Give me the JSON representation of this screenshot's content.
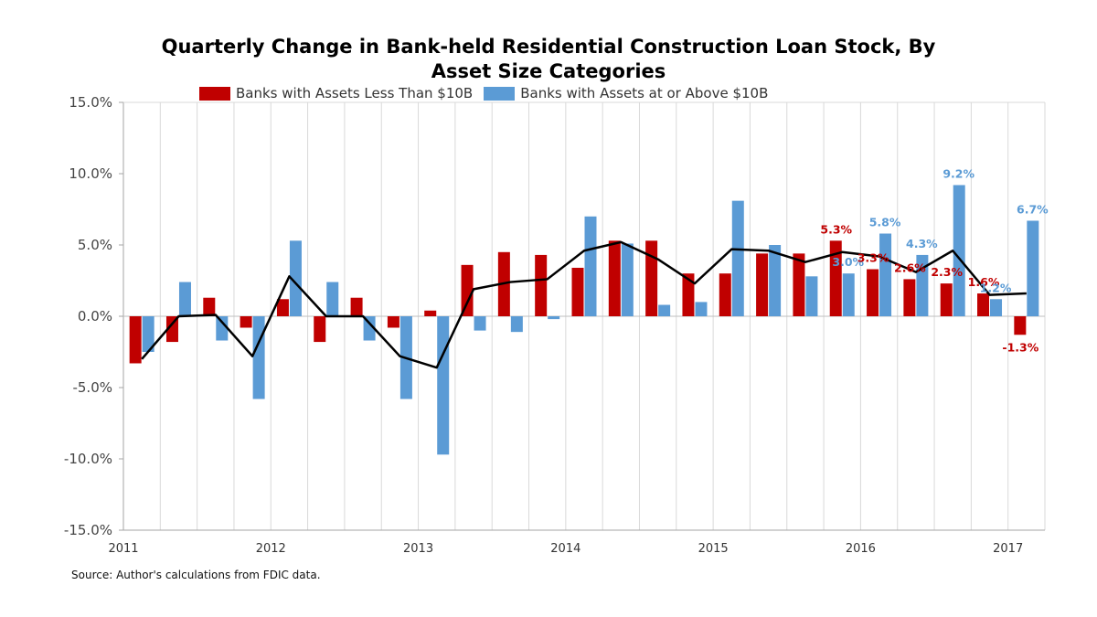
{
  "chart_data": {
    "type": "bar",
    "title_line1": "Quarterly Change in Bank-held Residential Construction Loan Stock, By",
    "title_line2": "Asset Size Categories",
    "source": "Source: Author's calculations from FDIC data.",
    "ylim": [
      -15,
      15
    ],
    "yticks": [
      "15.0%",
      "10.0%",
      "5.0%",
      "0.0%",
      "-5.0%",
      "-10.0%",
      "-15.0%"
    ],
    "ytick_values": [
      15,
      10,
      5,
      0,
      -5,
      -10,
      -15
    ],
    "years": [
      "2011",
      "2012",
      "2013",
      "2014",
      "2015",
      "2016",
      "2017"
    ],
    "quarters": 25,
    "colors": {
      "small": "#c00000",
      "large": "#5b9bd5",
      "line": "#000000",
      "grid": "#d9d9d9"
    },
    "series": [
      {
        "name": "Banks with Assets Less Than $10B",
        "values": [
          -3.3,
          -1.8,
          1.3,
          -0.8,
          1.2,
          -1.8,
          1.3,
          -0.8,
          0.4,
          3.6,
          4.5,
          4.3,
          3.4,
          5.3,
          5.3,
          3.0,
          3.0,
          4.4,
          4.4,
          5.3,
          3.3,
          2.6,
          2.3,
          1.6,
          -1.3
        ]
      },
      {
        "name": "Banks with Assets at or Above $10B",
        "values": [
          -2.5,
          2.4,
          -1.7,
          -5.8,
          5.3,
          2.4,
          -1.7,
          -5.8,
          -9.7,
          -1.0,
          -1.1,
          -0.2,
          7.0,
          5.1,
          0.8,
          1.0,
          8.1,
          5.0,
          2.8,
          3.0,
          5.8,
          4.3,
          9.2,
          1.2,
          6.7
        ]
      },
      {
        "name": "",
        "values": [
          -3.0,
          0.0,
          0.1,
          -2.8,
          2.8,
          0.0,
          0.0,
          -2.8,
          -3.6,
          1.9,
          2.4,
          2.6,
          4.6,
          5.2,
          4.0,
          2.3,
          4.7,
          4.6,
          3.8,
          4.5,
          4.2,
          3.1,
          4.6,
          1.5,
          1.6
        ]
      }
    ],
    "data_labels": [
      {
        "series": 0,
        "index": 19,
        "text": "5.3%"
      },
      {
        "series": 1,
        "index": 19,
        "text": "3.0%"
      },
      {
        "series": 0,
        "index": 20,
        "text": "3.3%"
      },
      {
        "series": 1,
        "index": 20,
        "text": "5.8%"
      },
      {
        "series": 0,
        "index": 21,
        "text": "2.6%"
      },
      {
        "series": 1,
        "index": 21,
        "text": "4.3%"
      },
      {
        "series": 0,
        "index": 22,
        "text": "2.3%"
      },
      {
        "series": 1,
        "index": 22,
        "text": "9.2%"
      },
      {
        "series": 0,
        "index": 23,
        "text": "1.6%"
      },
      {
        "series": 1,
        "index": 23,
        "text": "1.2%"
      },
      {
        "series": 0,
        "index": 24,
        "text": "-1.3%"
      },
      {
        "series": 1,
        "index": 24,
        "text": "6.7%"
      }
    ]
  }
}
